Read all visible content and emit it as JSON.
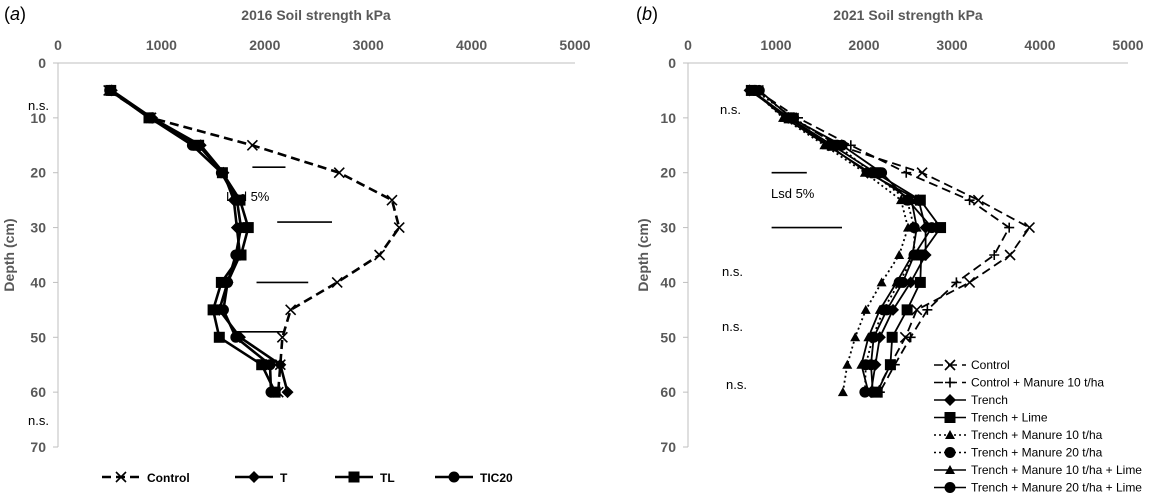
{
  "chart_data": [
    {
      "panel": "(a)",
      "type": "line",
      "title": "2016 Soil strength kPa",
      "ylabel": "Depth (cm)",
      "xlim": [
        0,
        5000
      ],
      "ylim": [
        0,
        70
      ],
      "y_inverted": true,
      "x_axis_position": "top",
      "x_ticks": [
        "0",
        "1000",
        "2000",
        "3000",
        "4000",
        "5000"
      ],
      "y_ticks": [
        "0",
        "10",
        "20",
        "30",
        "40",
        "50",
        "60",
        "70"
      ],
      "grid": false,
      "legend_position": "bottom",
      "annotations": {
        "ns": [
          "n.s.",
          "n.s."
        ],
        "lsd": "Lsd 5%",
        "lsd_bars": [
          {
            "y": 19,
            "x1": 1880,
            "x2": 2200
          },
          {
            "y": 29,
            "x1": 2120,
            "x2": 2650
          },
          {
            "y": 40,
            "x1": 1920,
            "x2": 2420
          },
          {
            "y": 49,
            "x1": 1700,
            "x2": 2200
          }
        ]
      },
      "series": [
        {
          "name": "Control",
          "style": "dashed",
          "marker": "x",
          "color": "#000000",
          "points": [
            [
              490,
              5
            ],
            [
              900,
              10
            ],
            [
              1880,
              15
            ],
            [
              2720,
              20
            ],
            [
              3230,
              25
            ],
            [
              3300,
              30
            ],
            [
              3110,
              35
            ],
            [
              2700,
              40
            ],
            [
              2250,
              45
            ],
            [
              2170,
              50
            ],
            [
              2150,
              55
            ],
            [
              2130,
              60
            ]
          ]
        },
        {
          "name": "T",
          "style": "solid",
          "marker": "diamond",
          "color": "#000000",
          "points": [
            [
              520,
              5
            ],
            [
              910,
              10
            ],
            [
              1380,
              15
            ],
            [
              1600,
              20
            ],
            [
              1700,
              25
            ],
            [
              1730,
              30
            ],
            [
              1760,
              35
            ],
            [
              1640,
              40
            ],
            [
              1560,
              45
            ],
            [
              1760,
              50
            ],
            [
              2150,
              55
            ],
            [
              2220,
              60
            ]
          ]
        },
        {
          "name": "TL",
          "style": "solid",
          "marker": "square",
          "color": "#000000",
          "points": [
            [
              510,
              5
            ],
            [
              880,
              10
            ],
            [
              1360,
              15
            ],
            [
              1590,
              20
            ],
            [
              1760,
              25
            ],
            [
              1840,
              30
            ],
            [
              1770,
              35
            ],
            [
              1580,
              40
            ],
            [
              1500,
              45
            ],
            [
              1560,
              50
            ],
            [
              1970,
              55
            ],
            [
              2100,
              60
            ]
          ]
        },
        {
          "name": "TIC20",
          "style": "solid",
          "marker": "circle",
          "color": "#000000",
          "points": [
            [
              500,
              5
            ],
            [
              890,
              10
            ],
            [
              1300,
              15
            ],
            [
              1580,
              20
            ],
            [
              1730,
              25
            ],
            [
              1770,
              30
            ],
            [
              1720,
              35
            ],
            [
              1640,
              40
            ],
            [
              1600,
              45
            ],
            [
              1720,
              50
            ],
            [
              2050,
              55
            ],
            [
              2060,
              60
            ]
          ]
        }
      ]
    },
    {
      "panel": "(b)",
      "type": "line",
      "title": "2021 Soil strength kPa",
      "ylabel": "Depth (cm)",
      "xlim": [
        0,
        5000
      ],
      "ylim": [
        0,
        70
      ],
      "y_inverted": true,
      "x_axis_position": "top",
      "x_ticks": [
        "0",
        "1000",
        "2000",
        "3000",
        "4000",
        "5000"
      ],
      "y_ticks": [
        "0",
        "10",
        "20",
        "30",
        "40",
        "50",
        "60",
        "70"
      ],
      "grid": false,
      "legend_position": "bottom-right",
      "annotations": {
        "ns": [
          "n.s.",
          "n.s.",
          "n.s.",
          "n.s."
        ],
        "lsd": "Lsd 5%",
        "lsd_bars": [
          {
            "y": 20,
            "x1": 950,
            "x2": 1350
          },
          {
            "y": 30,
            "x1": 950,
            "x2": 1750
          }
        ]
      },
      "series": [
        {
          "name": "Control",
          "style": "dashed",
          "marker": "x",
          "color": "#000000",
          "points": [
            [
              800,
              5
            ],
            [
              1180,
              10
            ],
            [
              1700,
              15
            ],
            [
              2660,
              20
            ],
            [
              3300,
              25
            ],
            [
              3880,
              30
            ],
            [
              3660,
              35
            ],
            [
              3200,
              40
            ],
            [
              2600,
              45
            ],
            [
              2470,
              50
            ],
            [
              2300,
              55
            ],
            [
              2140,
              60
            ]
          ]
        },
        {
          "name": "Control + Manure 10 t/ha",
          "style": "dashed",
          "marker": "plus",
          "color": "#000000",
          "points": [
            [
              780,
              5
            ],
            [
              1250,
              10
            ],
            [
              1850,
              15
            ],
            [
              2480,
              20
            ],
            [
              3200,
              25
            ],
            [
              3650,
              30
            ],
            [
              3480,
              35
            ],
            [
              3050,
              40
            ],
            [
              2720,
              45
            ],
            [
              2530,
              50
            ],
            [
              2350,
              55
            ],
            [
              2180,
              60
            ]
          ]
        },
        {
          "name": "Trench",
          "style": "solid",
          "marker": "diamond",
          "color": "#000000",
          "points": [
            [
              700,
              5
            ],
            [
              1140,
              10
            ],
            [
              1600,
              15
            ],
            [
              2040,
              20
            ],
            [
              2620,
              25
            ],
            [
              2700,
              30
            ],
            [
              2700,
              35
            ],
            [
              2530,
              40
            ],
            [
              2330,
              45
            ],
            [
              2180,
              50
            ],
            [
              2130,
              55
            ],
            [
              2080,
              60
            ]
          ]
        },
        {
          "name": "Trench + Lime",
          "style": "solid",
          "marker": "square",
          "color": "#000000",
          "points": [
            [
              720,
              5
            ],
            [
              1150,
              10
            ],
            [
              1640,
              15
            ],
            [
              2130,
              20
            ],
            [
              2640,
              25
            ],
            [
              2870,
              30
            ],
            [
              2650,
              35
            ],
            [
              2640,
              40
            ],
            [
              2490,
              45
            ],
            [
              2320,
              50
            ],
            [
              2300,
              55
            ],
            [
              2150,
              60
            ]
          ]
        },
        {
          "name": "Trench + Manure 10 t/ha",
          "style": "dotted",
          "marker": "triangle",
          "color": "#000000",
          "points": [
            [
              740,
              5
            ],
            [
              1080,
              10
            ],
            [
              1550,
              15
            ],
            [
              2010,
              20
            ],
            [
              2420,
              25
            ],
            [
              2500,
              30
            ],
            [
              2400,
              35
            ],
            [
              2200,
              40
            ],
            [
              2020,
              45
            ],
            [
              1900,
              50
            ],
            [
              1810,
              55
            ],
            [
              1760,
              60
            ]
          ]
        },
        {
          "name": "Trench + Manure 20 t/ha",
          "style": "dotted",
          "marker": "circle",
          "color": "#000000",
          "points": [
            [
              760,
              5
            ],
            [
              1200,
              10
            ],
            [
              1700,
              15
            ],
            [
              2090,
              20
            ],
            [
              2490,
              25
            ],
            [
              2570,
              30
            ],
            [
              2570,
              35
            ],
            [
              2400,
              40
            ],
            [
              2220,
              45
            ],
            [
              2100,
              50
            ],
            [
              2020,
              55
            ],
            [
              2010,
              60
            ]
          ]
        },
        {
          "name": "Trench + Manure 10 t/ha + Lime",
          "style": "solid",
          "marker": "triangle",
          "color": "#000000",
          "points": [
            [
              730,
              5
            ],
            [
              1100,
              10
            ],
            [
              1580,
              15
            ],
            [
              2070,
              20
            ],
            [
              2540,
              25
            ],
            [
              2600,
              30
            ],
            [
              2550,
              35
            ],
            [
              2370,
              40
            ],
            [
              2180,
              45
            ],
            [
              2050,
              50
            ],
            [
              1970,
              55
            ],
            [
              2050,
              60
            ]
          ]
        },
        {
          "name": "Trench + Manure 20 t/ha + Lime",
          "style": "solid",
          "marker": "circle",
          "color": "#000000",
          "points": [
            [
              810,
              5
            ],
            [
              1170,
              10
            ],
            [
              1750,
              15
            ],
            [
              2200,
              20
            ],
            [
              2500,
              25
            ],
            [
              2770,
              30
            ],
            [
              2570,
              35
            ],
            [
              2440,
              40
            ],
            [
              2260,
              45
            ],
            [
              2110,
              50
            ],
            [
              2080,
              55
            ],
            [
              2100,
              60
            ]
          ]
        }
      ]
    }
  ]
}
